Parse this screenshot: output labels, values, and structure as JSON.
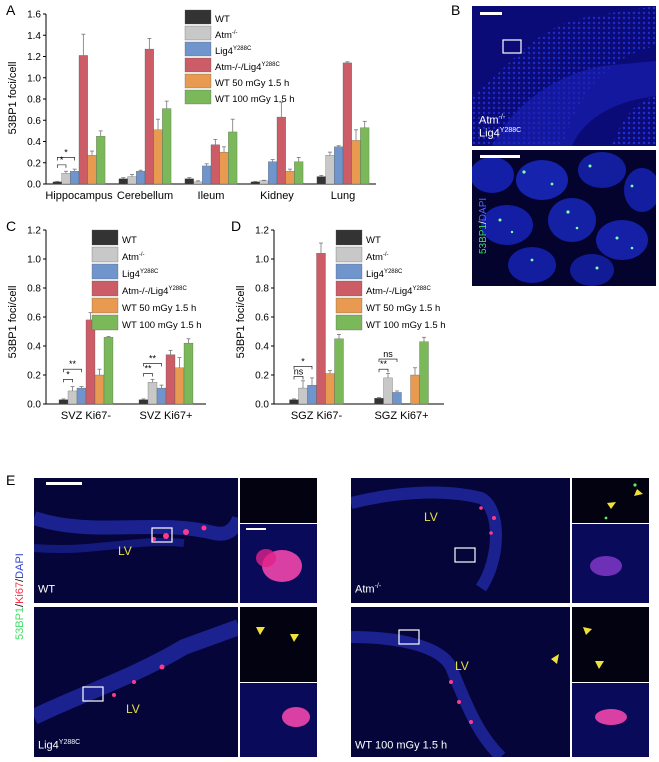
{
  "panel_letters": {
    "a": "A",
    "b": "B",
    "c": "C",
    "d": "D",
    "e": "E"
  },
  "colors": {
    "wt": "#333333",
    "atm": "#c8c8c8",
    "lig4": "#7094cc",
    "double": "#cc5c66",
    "wt50": "#e89a50",
    "wt100": "#7bb85a"
  },
  "legend": [
    {
      "key": "wt",
      "text": "WT",
      "sup": ""
    },
    {
      "key": "atm",
      "text": "Atm",
      "sup": "-/-"
    },
    {
      "key": "lig4",
      "text": "Lig4",
      "sup": "Y288C"
    },
    {
      "key": "double",
      "text": "Atm-/-/Lig4",
      "sup": "Y288C"
    },
    {
      "key": "wt50",
      "text": "WT 50 mGy 1.5 h",
      "sup": ""
    },
    {
      "key": "wt100",
      "text": "WT 100 mGy 1.5 h",
      "sup": ""
    }
  ],
  "chart_data": [
    {
      "id": "A",
      "type": "bar",
      "ylabel": "53BP1 foci/cell",
      "ylim": [
        0,
        1.6
      ],
      "yticks": [
        "0.0",
        "0.2",
        "0.4",
        "0.6",
        "0.8",
        "1.0",
        "1.2",
        "1.4",
        "1.6"
      ],
      "categories": [
        "Hippocampus",
        "Cerebellum",
        "Ileum",
        "Kidney",
        "Lung"
      ],
      "series": [
        {
          "name": "WT",
          "values": [
            0.02,
            0.05,
            0.05,
            0.02,
            0.07
          ],
          "errors": [
            0.005,
            0.01,
            0.01,
            0.005,
            0.01
          ]
        },
        {
          "name": "Atm-/-",
          "values": [
            0.1,
            0.07,
            0.02,
            0.03,
            0.27
          ],
          "errors": [
            0.02,
            0.02,
            0.01,
            0.005,
            0.03
          ]
        },
        {
          "name": "Lig4Y288C",
          "values": [
            0.12,
            0.12,
            0.17,
            0.21,
            0.35
          ],
          "errors": [
            0.02,
            0.01,
            0.02,
            0.02,
            0.01
          ]
        },
        {
          "name": "Atm-/-/Lig4Y288C",
          "values": [
            1.21,
            1.27,
            0.37,
            0.63,
            1.14
          ],
          "errors": [
            0.2,
            0.1,
            0.05,
            0.14,
            0.01
          ]
        },
        {
          "name": "WT 50 mGy 1.5 h",
          "values": [
            0.27,
            0.51,
            0.3,
            0.12,
            0.41
          ],
          "errors": [
            0.04,
            0.1,
            0.05,
            0.02,
            0.1
          ]
        },
        {
          "name": "WT 100 mGy 1.5 h",
          "values": [
            0.45,
            0.71,
            0.49,
            0.21,
            0.53
          ],
          "errors": [
            0.05,
            0.07,
            0.12,
            0.04,
            0.06
          ]
        }
      ],
      "significance": [
        "*",
        "*"
      ]
    },
    {
      "id": "C",
      "type": "bar",
      "ylabel": "53BP1 foci/cell",
      "ylim": [
        0,
        1.2
      ],
      "yticks": [
        "0.0",
        "0.2",
        "0.4",
        "0.6",
        "0.8",
        "1.0",
        "1.2"
      ],
      "categories": [
        "SVZ Ki67-",
        "SVZ Ki67+"
      ],
      "series": [
        {
          "name": "WT",
          "values": [
            0.03,
            0.03
          ],
          "errors": [
            0.005,
            0.005
          ]
        },
        {
          "name": "Atm-/-",
          "values": [
            0.09,
            0.15
          ],
          "errors": [
            0.03,
            0.02
          ]
        },
        {
          "name": "Lig4Y288C",
          "values": [
            0.11,
            0.11
          ],
          "errors": [
            0.01,
            0.02
          ]
        },
        {
          "name": "Atm-/-/Lig4Y288C",
          "values": [
            0.58,
            0.34
          ],
          "errors": [
            0.05,
            0.03
          ]
        },
        {
          "name": "WT 50 mGy 1.5 h",
          "values": [
            0.2,
            0.25
          ],
          "errors": [
            0.04,
            0.07
          ]
        },
        {
          "name": "WT 100 mGy 1.5 h",
          "values": [
            0.46,
            0.42
          ],
          "errors": [
            0.005,
            0.03
          ]
        }
      ],
      "significance": [
        "*",
        "**",
        "**",
        "**"
      ]
    },
    {
      "id": "D",
      "type": "bar",
      "ylabel": "53BP1 foci/cell",
      "ylim": [
        0,
        1.2
      ],
      "yticks": [
        "0.0",
        "0.2",
        "0.4",
        "0.6",
        "0.8",
        "1.0",
        "1.2"
      ],
      "categories": [
        "SGZ Ki67-",
        "SGZ Ki67+"
      ],
      "series": [
        {
          "name": "WT",
          "values": [
            0.03,
            0.04
          ],
          "errors": [
            0.005,
            0.005
          ]
        },
        {
          "name": "Atm-/-",
          "values": [
            0.11,
            0.18
          ],
          "errors": [
            0.05,
            0.03
          ]
        },
        {
          "name": "Lig4Y288C",
          "values": [
            0.13,
            0.08
          ],
          "errors": [
            0.05,
            0.01
          ]
        },
        {
          "name": "Atm-/-/Lig4Y288C",
          "values": [
            1.04,
            0.0
          ],
          "errors": [
            0.07,
            0.0
          ]
        },
        {
          "name": "WT 50 mGy 1.5 h",
          "values": [
            0.21,
            0.2
          ],
          "errors": [
            0.02,
            0.05
          ]
        },
        {
          "name": "WT 100 mGy 1.5 h",
          "values": [
            0.45,
            0.43
          ],
          "errors": [
            0.03,
            0.03
          ]
        }
      ],
      "significance": [
        "ns",
        "*",
        "**",
        "ns"
      ]
    }
  ],
  "panel_b": {
    "genotype": "Atm",
    "genotype_sup": "-/-",
    "genotype_line2": "Lig4",
    "genotype_line2_sup": "Y288C",
    "stain_green": "53BP1",
    "stain_sep": "/",
    "stain_blue": "DAPI"
  },
  "panel_e": {
    "side_label_green": "53BP1",
    "side_label_sep1": "/",
    "side_label_red": "Ki67",
    "side_label_sep2": "/",
    "side_label_blue": "DAPI",
    "lv": "LV",
    "images": [
      {
        "label": "WT",
        "sup": ""
      },
      {
        "label": "Atm",
        "sup": "-/-"
      },
      {
        "label": "Lig4",
        "sup": "Y288C"
      },
      {
        "label": "WT 100 mGy 1.5 h",
        "sup": ""
      }
    ]
  }
}
